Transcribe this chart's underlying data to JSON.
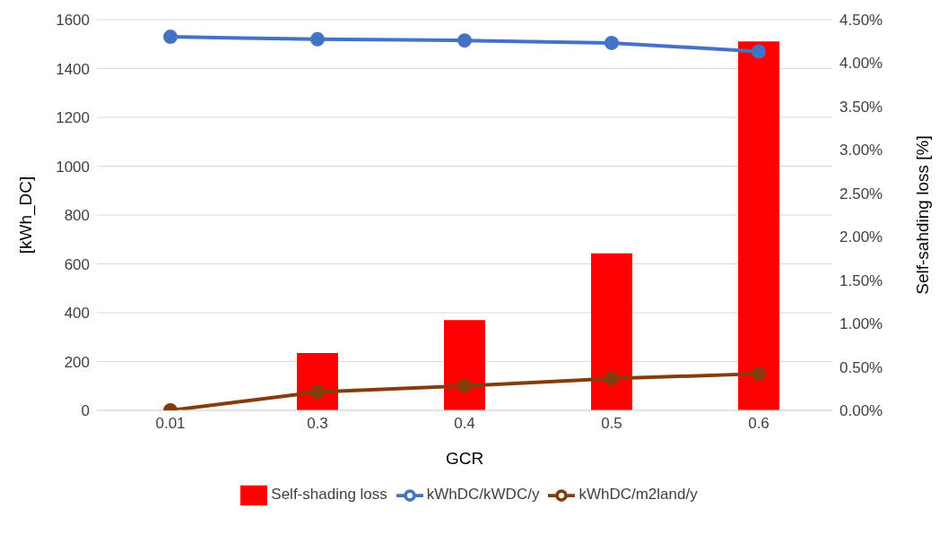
{
  "chart_data": {
    "type": "bar",
    "xlabel": "GCR",
    "ylabel": "[kWh_DC]",
    "y2label": "Self-sahding loss [%]",
    "categories": [
      "0.01",
      "0.3",
      "0.4",
      "0.5",
      "0.6"
    ],
    "series": [
      {
        "name": "Self-shading loss",
        "axis": "y2",
        "color": "#ff0000",
        "values": [
          0,
          0.66,
          1.04,
          1.81,
          4.25
        ]
      },
      {
        "name": "kWhDC/kWDC/y",
        "type": "line",
        "color": "#4472c4",
        "values": [
          1530,
          1520,
          1515,
          1505,
          1470
        ]
      },
      {
        "name": "kWhDC/m2land/y",
        "type": "line",
        "color": "#843c0c",
        "values": [
          0,
          75,
          100,
          130,
          150
        ]
      }
    ],
    "ylim": [
      0,
      1600
    ],
    "yticks": [
      0,
      200,
      400,
      600,
      800,
      1000,
      1200,
      1400,
      1600
    ],
    "y2lim": [
      0,
      4.5
    ],
    "y2ticks": [
      {
        "value": 0,
        "label": "0.00%"
      },
      {
        "value": 0.5,
        "label": "0.50%"
      },
      {
        "value": 1,
        "label": "1.00%"
      },
      {
        "value": 1.5,
        "label": "1.50%"
      },
      {
        "value": 2,
        "label": "2.00%"
      },
      {
        "value": 2.5,
        "label": "2.50%"
      },
      {
        "value": 3,
        "label": "3.00%"
      },
      {
        "value": 3.5,
        "label": "3.50%"
      },
      {
        "value": 4,
        "label": "4.00%"
      },
      {
        "value": 4.5,
        "label": "4.50%"
      }
    ],
    "grid": "y",
    "legend": "bottom",
    "marker": "circle",
    "line_style": "solid"
  }
}
